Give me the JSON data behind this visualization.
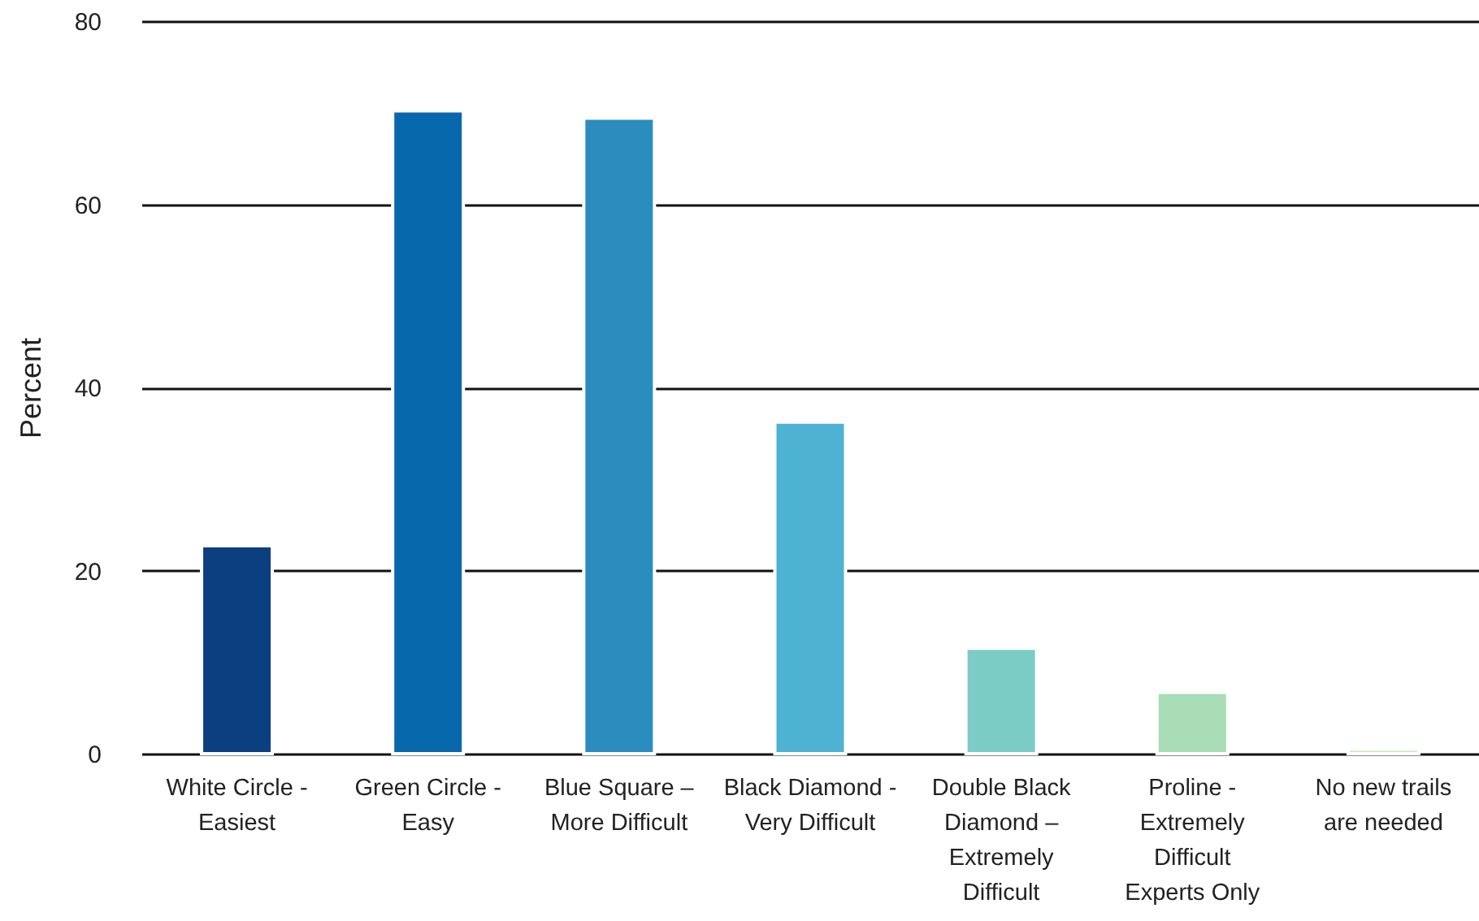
{
  "chart_data": {
    "type": "bar",
    "ylabel": "Percent",
    "categories": [
      "White Circle - Easiest",
      "Green Circle - Easy",
      "Blue Square – More Difficult",
      "Black Diamond - Very Difficult",
      "Double Black Diamond – Extremely Difficult",
      "Proline - Extremely Difficult Experts Only",
      "No new trails are needed"
    ],
    "values": [
      22.7,
      70.2,
      69.4,
      36.2,
      11.5,
      6.7,
      0.5
    ],
    "colors": [
      "#0b3f80",
      "#0868ac",
      "#2b8cbe",
      "#4eb3d3",
      "#7bccc4",
      "#a8ddb5",
      "#ccebc5"
    ],
    "ylim": [
      0,
      80
    ],
    "yticks": [
      0,
      20,
      40,
      60,
      80
    ],
    "grid": "y"
  }
}
